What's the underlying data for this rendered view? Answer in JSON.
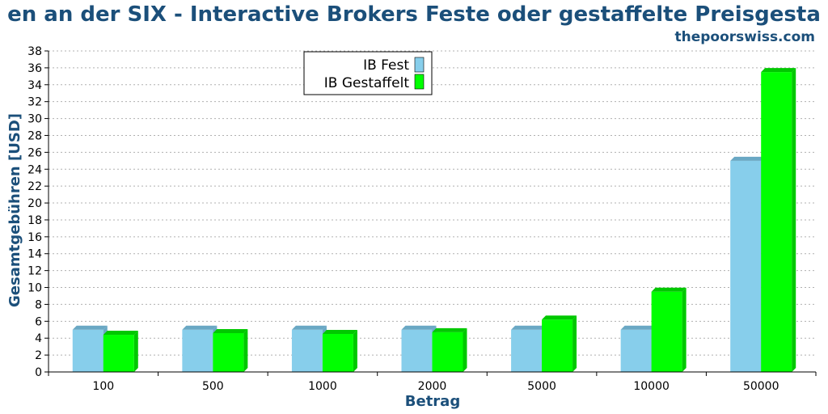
{
  "colors": {
    "title": "#1b4f7a",
    "axis_label": "#1b4f7a",
    "fest": "#87ceeb",
    "fest_top": "#6aa8c4",
    "fest_side": "#6aa8c4",
    "gestaffelt": "#00ff00",
    "gestaffelt_top": "#00c800",
    "gestaffelt_side": "#00c800",
    "grid": "#b0b0b0"
  },
  "chart_data": {
    "type": "bar",
    "title": "en an der SIX - Interactive Brokers Feste oder gestaffelte Preisgesta",
    "subtitle": "thepoorswiss.com",
    "xlabel": "Betrag",
    "ylabel": "Gesamtgebühren [USD]",
    "categories": [
      "100",
      "500",
      "1000",
      "2000",
      "5000",
      "10000",
      "50000"
    ],
    "series": [
      {
        "name": "IB Fest",
        "values": [
          5,
          5,
          5,
          5,
          5,
          5,
          25
        ]
      },
      {
        "name": "IB Gestaffelt",
        "values": [
          4.4,
          4.6,
          4.5,
          4.7,
          6.2,
          9.5,
          35.5
        ]
      }
    ],
    "ylim": [
      0,
      38
    ],
    "ytick_step": 2,
    "grid": true,
    "grid_style": "dotted",
    "legend_position": "top-center"
  }
}
